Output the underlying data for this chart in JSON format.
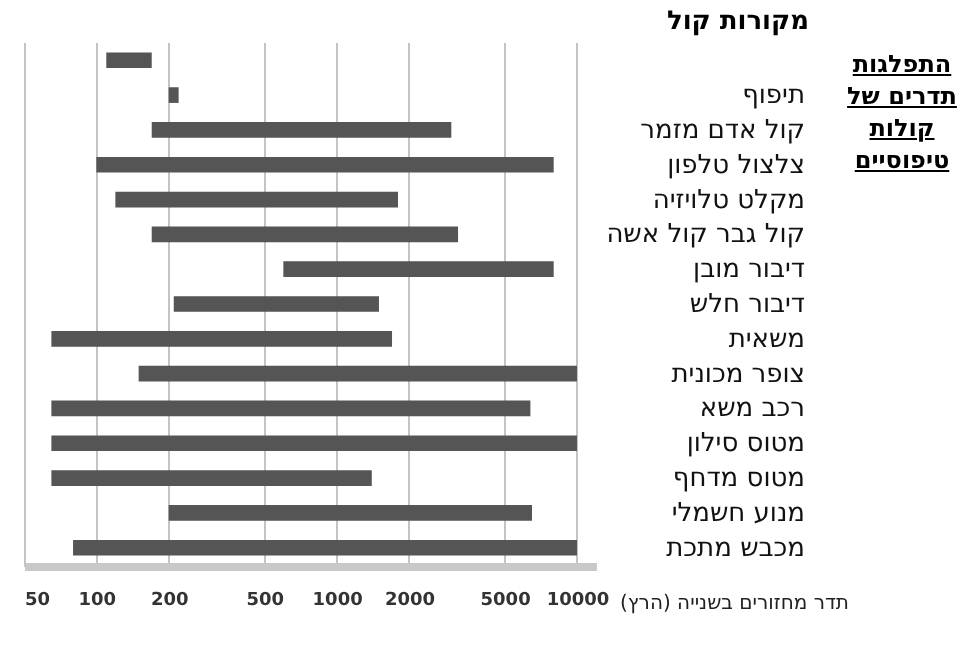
{
  "chart_data": {
    "type": "bar",
    "orientation": "horizontal",
    "title": "התפלגות תדרים של קולות טיפוסיים",
    "xlabel": "תדר מחזורים בשנייה (הרץ)",
    "ylabel": "מקורות קול",
    "categories": [
      null,
      "תיפוף",
      "קול אדם מזמר",
      "צלצול טלפון",
      "מקלט טלויזיה",
      "קול גבר קול אשה",
      "דיבור מובן",
      "דיבור חלש",
      "משאית",
      "צופר מכונית",
      "רכב משא",
      "מטוס סילון",
      "מטוס מדחף",
      "מנוע חשמלי",
      "מכבש מתכת"
    ],
    "base": [
      110,
      200,
      170,
      100,
      120,
      170,
      600,
      210,
      65,
      150,
      65,
      65,
      65,
      200,
      80
    ],
    "values": [
      60,
      20,
      2830,
      7900,
      1680,
      3030,
      7400,
      1290,
      1635,
      9850,
      6335,
      9935,
      1335,
      6300,
      9920
    ],
    "color": "#555555",
    "xlim": [
      50,
      12000
    ],
    "xticks": [
      50,
      100,
      200,
      500,
      1000,
      2000,
      5000,
      10000
    ],
    "log": "x",
    "grid": "x"
  }
}
